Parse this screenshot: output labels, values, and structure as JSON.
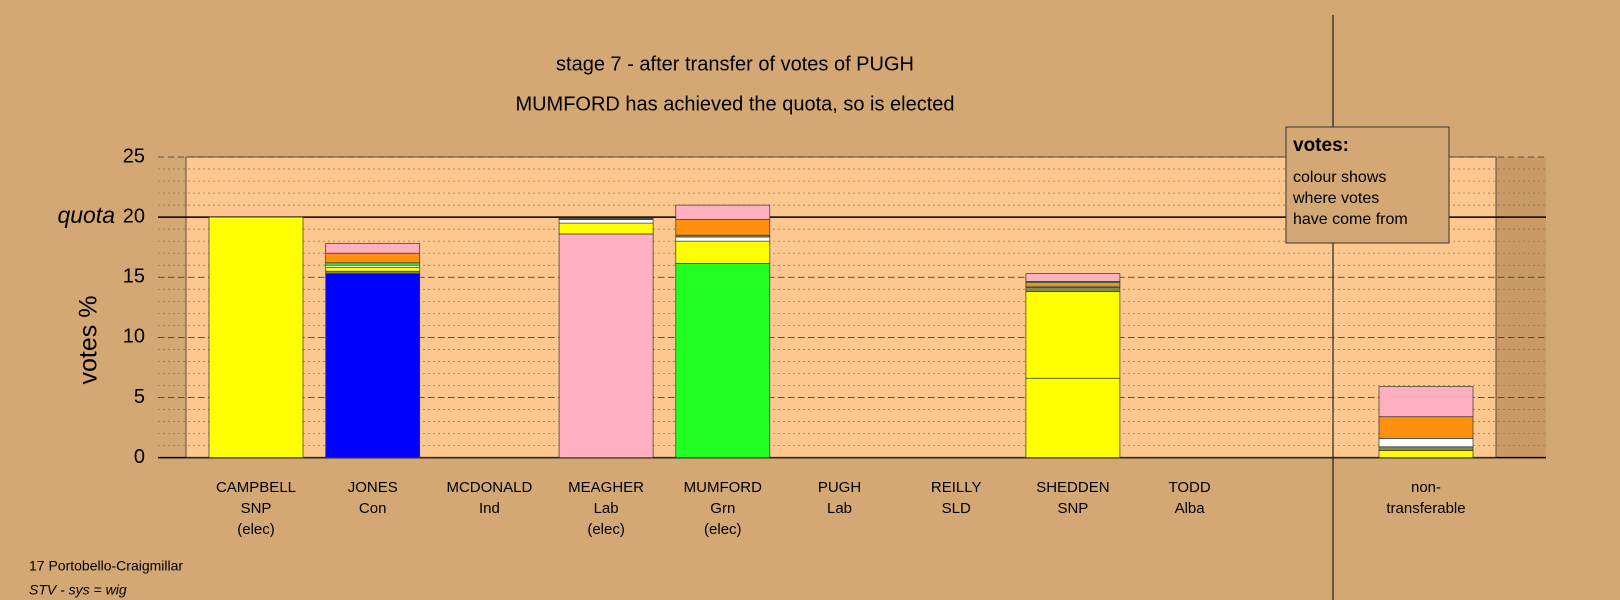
{
  "chart_data": {
    "type": "stacked-bar",
    "title": "stage 7 - after transfer of votes of PUGH",
    "subtitle": "MUMFORD has achieved the quota, so is elected",
    "y_label": "votes %",
    "quota": {
      "value": 20,
      "label": "quota"
    },
    "categories": [
      [
        "CAMPBELL",
        "SNP",
        "(elec)"
      ],
      [
        "JONES",
        "Con"
      ],
      [
        "MCDONALD",
        "Ind"
      ],
      [
        "MEAGHER",
        "Lab",
        "(elec)"
      ],
      [
        "MUMFORD",
        "Grn",
        "(elec)"
      ],
      [
        "PUGH",
        "Lab"
      ],
      [
        "REILLY",
        "SLD"
      ],
      [
        "SHEDDEN",
        "SNP"
      ],
      [
        "TODD",
        "Alba"
      ],
      [
        "non-",
        "transferable"
      ]
    ],
    "stacks": [
      [
        {
          "value": 20,
          "color": "#ffff00"
        }
      ],
      [
        {
          "value": 15.3,
          "color": "#0000ff"
        },
        {
          "value": 0.2,
          "color": "#8a8a40"
        },
        {
          "value": 0.3,
          "color": "#ffff00"
        },
        {
          "value": 0.2,
          "color": "#ffffff"
        },
        {
          "value": 0.2,
          "color": "#22ff22"
        },
        {
          "value": 0.8,
          "color": "#ff9010"
        },
        {
          "value": 0.8,
          "color": "#ffb0c0"
        }
      ],
      [],
      [
        {
          "value": 18.6,
          "color": "#ffb0c0"
        },
        {
          "value": 0.9,
          "color": "#ffff00"
        },
        {
          "value": 0.3,
          "color": "#ffffff"
        },
        {
          "value": 0.1,
          "color": "#8a8a40"
        }
      ],
      [
        {
          "value": 16.15,
          "color": "#22ff22"
        },
        {
          "value": 1.85,
          "color": "#ffff00"
        },
        {
          "value": 0.35,
          "color": "#ffffff"
        },
        {
          "value": 0.15,
          "color": "#8a8a40"
        },
        {
          "value": 1.3,
          "color": "#ff9010"
        },
        {
          "value": 1.2,
          "color": "#ffb0c0"
        }
      ],
      [],
      [],
      [
        {
          "value": 6.6,
          "color": "#ffff00"
        },
        {
          "value": 7.2,
          "color": "#ffff00"
        },
        {
          "value": 0.35,
          "color": "#8a8a40"
        },
        {
          "value": 0.1,
          "color": "#ffffff"
        },
        {
          "value": 0.3,
          "color": "#ff9010"
        },
        {
          "value": 0.1,
          "color": "#22ff22"
        },
        {
          "value": 0.65,
          "color": "#ffb0c0"
        }
      ],
      [],
      [
        {
          "value": 0.6,
          "color": "#ffff00"
        },
        {
          "value": 0.3,
          "color": "#8a8a40"
        },
        {
          "value": 0.7,
          "color": "#ffffff"
        },
        {
          "value": 1.8,
          "color": "#ff9010"
        },
        {
          "value": 2.5,
          "color": "#ffb0c0"
        }
      ]
    ],
    "ylim": [
      0,
      25
    ],
    "yticks": [
      0,
      5,
      10,
      15,
      20,
      25
    ],
    "grid": true,
    "legend": {
      "title": "votes:",
      "lines": [
        "colour shows",
        "where votes",
        "have come from"
      ]
    },
    "footer": [
      "17 Portobello-Craigmillar",
      "STV - sys = wig"
    ]
  }
}
